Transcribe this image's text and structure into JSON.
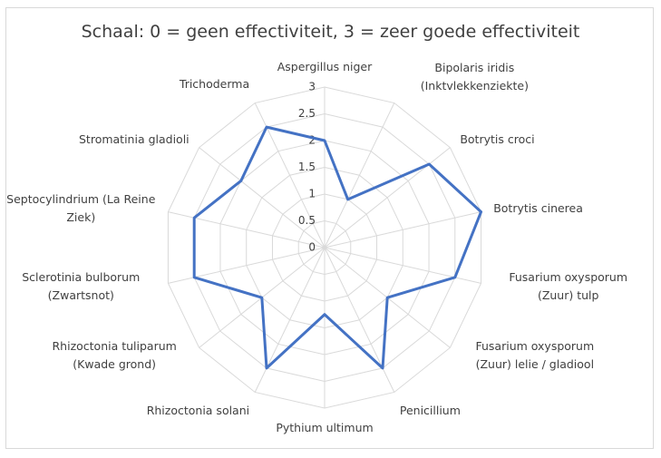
{
  "chart_data": {
    "type": "radar",
    "title": "Schaal: 0 = geen effectiviteit, 3 = zeer goede effectiviteit",
    "categories": [
      "Aspergillus niger",
      "Bipolaris iridis (Inktvlekkenziekte)",
      "Botrytis croci",
      "Botrytis cinerea",
      "Fusarium oxysporum (Zuur) tulp",
      "Fusarium oxysporum (Zuur) lelie / gladiool",
      "Penicillium",
      "Pythium ultimum",
      "Rhizoctonia solani",
      "Rhizoctonia tuliparum (Kwade grond)",
      "Sclerotinia bulborum (Zwartsnot)",
      "Septocylindrium (La Reine Ziek)",
      "Stromatinia gladioli",
      "Trichoderma"
    ],
    "values": [
      2,
      1,
      2.5,
      3,
      2.5,
      1.5,
      2.5,
      1.25,
      2.5,
      1.5,
      2.5,
      2.5,
      2,
      2.5
    ],
    "color": "#4472c4",
    "ylim": [
      0,
      3
    ],
    "yticks": [
      0,
      0.5,
      1,
      1.5,
      2,
      2.5,
      3
    ],
    "grid": true
  }
}
